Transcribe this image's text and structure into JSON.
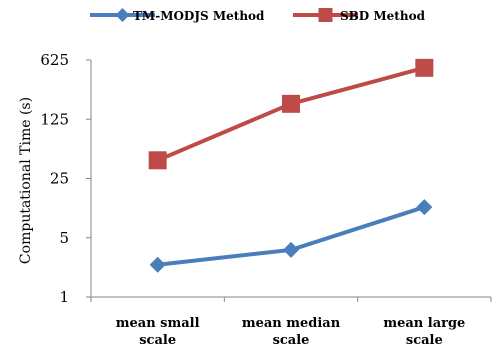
{
  "chart_data": {
    "type": "line",
    "title": "",
    "xlabel": "",
    "ylabel": "Computational Time (s)",
    "yscale": "log5",
    "ylim": [
      1,
      625
    ],
    "yticks": [
      1,
      5,
      25,
      125,
      625
    ],
    "ytick_labels": [
      "1",
      "5",
      "25",
      "125",
      "625"
    ],
    "grid": false,
    "legend_position": "top",
    "categories": [
      [
        "mean small",
        "scale"
      ],
      [
        "mean median",
        "scale"
      ],
      [
        "mean large",
        "scale"
      ]
    ],
    "series": [
      {
        "name": "TM-MODJS Method",
        "values": [
          2.4,
          3.6,
          11.5
        ],
        "color": "#4a7ebb",
        "marker": "diamond"
      },
      {
        "name": "SBD Method",
        "values": [
          41,
          190,
          505
        ],
        "color": "#be4b48",
        "marker": "square"
      }
    ]
  }
}
